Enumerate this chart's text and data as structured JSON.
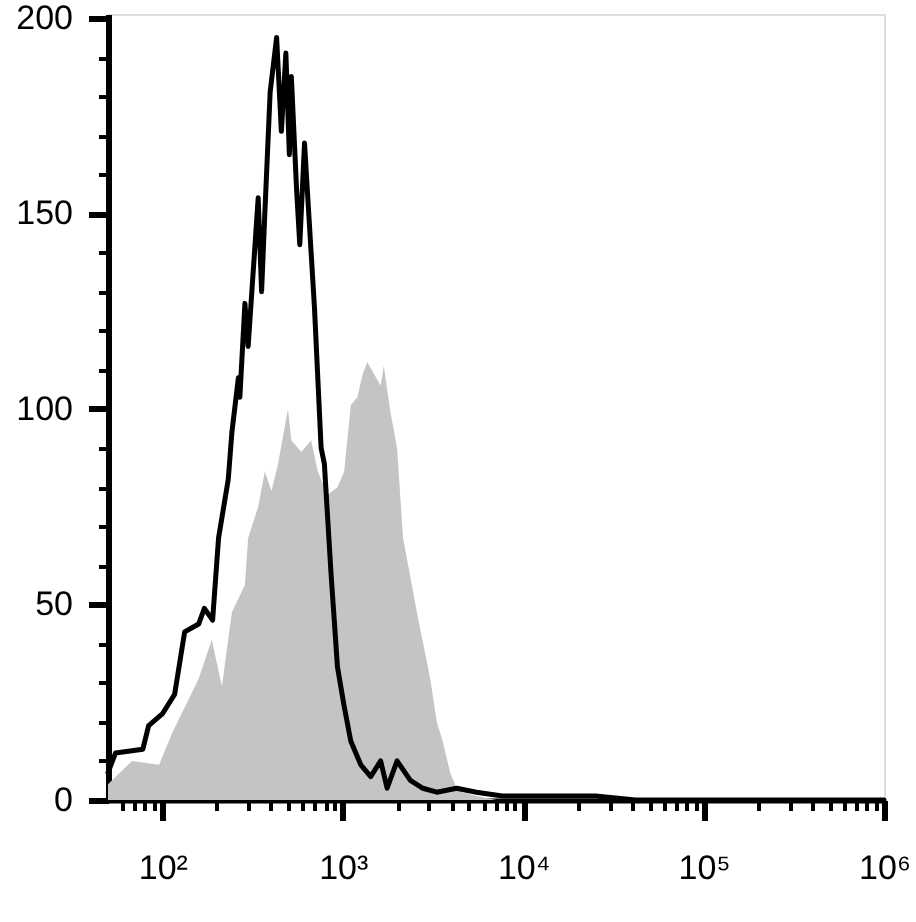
{
  "chart_data": {
    "type": "line",
    "log": "x",
    "grid": false,
    "xlim": [
      50,
      1000000
    ],
    "ylim": [
      0,
      201
    ],
    "xticks": [
      {
        "value": 60,
        "label": null
      },
      {
        "value": 70,
        "label": null
      },
      {
        "value": 80,
        "label": null
      },
      {
        "value": 90,
        "label": null
      },
      {
        "value": 100,
        "label": "10²"
      },
      {
        "value": 200,
        "label": null
      },
      {
        "value": 300,
        "label": null
      },
      {
        "value": 400,
        "label": null
      },
      {
        "value": 500,
        "label": null
      },
      {
        "value": 600,
        "label": null
      },
      {
        "value": 700,
        "label": null
      },
      {
        "value": 800,
        "label": null
      },
      {
        "value": 900,
        "label": null
      },
      {
        "value": 1000,
        "label": "10³"
      },
      {
        "value": 2000,
        "label": null
      },
      {
        "value": 3000,
        "label": null
      },
      {
        "value": 4000,
        "label": null
      },
      {
        "value": 5000,
        "label": null
      },
      {
        "value": 6000,
        "label": null
      },
      {
        "value": 7000,
        "label": null
      },
      {
        "value": 8000,
        "label": null
      },
      {
        "value": 9000,
        "label": null
      },
      {
        "value": 10000,
        "label": "10⁴"
      },
      {
        "value": 20000,
        "label": null
      },
      {
        "value": 30000,
        "label": null
      },
      {
        "value": 40000,
        "label": null
      },
      {
        "value": 50000,
        "label": null
      },
      {
        "value": 60000,
        "label": null
      },
      {
        "value": 70000,
        "label": null
      },
      {
        "value": 80000,
        "label": null
      },
      {
        "value": 90000,
        "label": null
      },
      {
        "value": 100000,
        "label": "10⁵"
      },
      {
        "value": 200000,
        "label": null
      },
      {
        "value": 300000,
        "label": null
      },
      {
        "value": 400000,
        "label": null
      },
      {
        "value": 500000,
        "label": null
      },
      {
        "value": 600000,
        "label": null
      },
      {
        "value": 700000,
        "label": null
      },
      {
        "value": 800000,
        "label": null
      },
      {
        "value": 900000,
        "label": null
      },
      {
        "value": 1000000,
        "label": "10⁶"
      }
    ],
    "yticks": [
      0,
      {
        "value": 10,
        "label": null
      },
      {
        "value": 20,
        "label": null
      },
      {
        "value": 30,
        "label": null
      },
      {
        "value": 40,
        "label": null
      },
      50,
      {
        "value": 60,
        "label": null
      },
      {
        "value": 70,
        "label": null
      },
      {
        "value": 80,
        "label": null
      },
      {
        "value": 90,
        "label": null
      },
      100,
      {
        "value": 110,
        "label": null
      },
      {
        "value": 120,
        "label": null
      },
      {
        "value": 130,
        "label": null
      },
      {
        "value": 140,
        "label": null
      },
      150,
      {
        "value": 160,
        "label": null
      },
      {
        "value": 170,
        "label": null
      },
      {
        "value": 180,
        "label": null
      },
      {
        "value": 190,
        "label": null
      },
      200
    ],
    "series": [
      {
        "type": "area",
        "color": "#c4c4c4",
        "x": [
          50,
          68,
          96,
          113,
          134,
          159,
          188,
          214,
          243,
          287,
          299,
          340,
          370,
          403,
          438,
          497,
          519,
          589,
          668,
          727,
          824,
          935,
          1018,
          1109,
          1205,
          1291,
          1368,
          1488,
          1622,
          1689,
          1841,
          2000,
          2160,
          2576,
          3055,
          3320,
          3580,
          3940,
          4280,
          4620,
          5510,
          7100,
          1000000
        ],
        "values": [
          4,
          10,
          9,
          17,
          24,
          31,
          41,
          29,
          48,
          55,
          67,
          75,
          84,
          79,
          86,
          100,
          92,
          89,
          92,
          84,
          78,
          80,
          84,
          101,
          103,
          109,
          112,
          109,
          106,
          111,
          99,
          90,
          67,
          48,
          31,
          20,
          15,
          7,
          3,
          2,
          1,
          0,
          0
        ]
      },
      {
        "color": "#000000",
        "x": [
          50,
          55,
          78,
          84,
          100,
          117,
          133,
          159,
          171,
          190,
          205,
          232,
          243,
          264,
          269,
          287,
          299,
          340,
          355,
          370,
          396,
          430,
          457,
          484,
          506,
          519,
          555,
          578,
          614,
          668,
          697,
          759,
          791,
          861,
          935,
          1018,
          1109,
          1259,
          1429,
          1622,
          1762,
          2000,
          2371,
          2780,
          3320,
          4280,
          5510,
          7660,
          9880,
          14100,
          25200,
          41900,
          89500,
          318000,
          598000,
          1000000
        ],
        "values": [
          7,
          12,
          13,
          19,
          22,
          27,
          43,
          45,
          49,
          46,
          67,
          82,
          94,
          108,
          103,
          127,
          116,
          154,
          130,
          150,
          181,
          195,
          171,
          191,
          165,
          185,
          156,
          142,
          168,
          140,
          126,
          90,
          86,
          58,
          34,
          24,
          15,
          9,
          6,
          10,
          3,
          10,
          5,
          3,
          2,
          3,
          2,
          1,
          1,
          1,
          1,
          0,
          0,
          0,
          0,
          0
        ]
      }
    ]
  }
}
